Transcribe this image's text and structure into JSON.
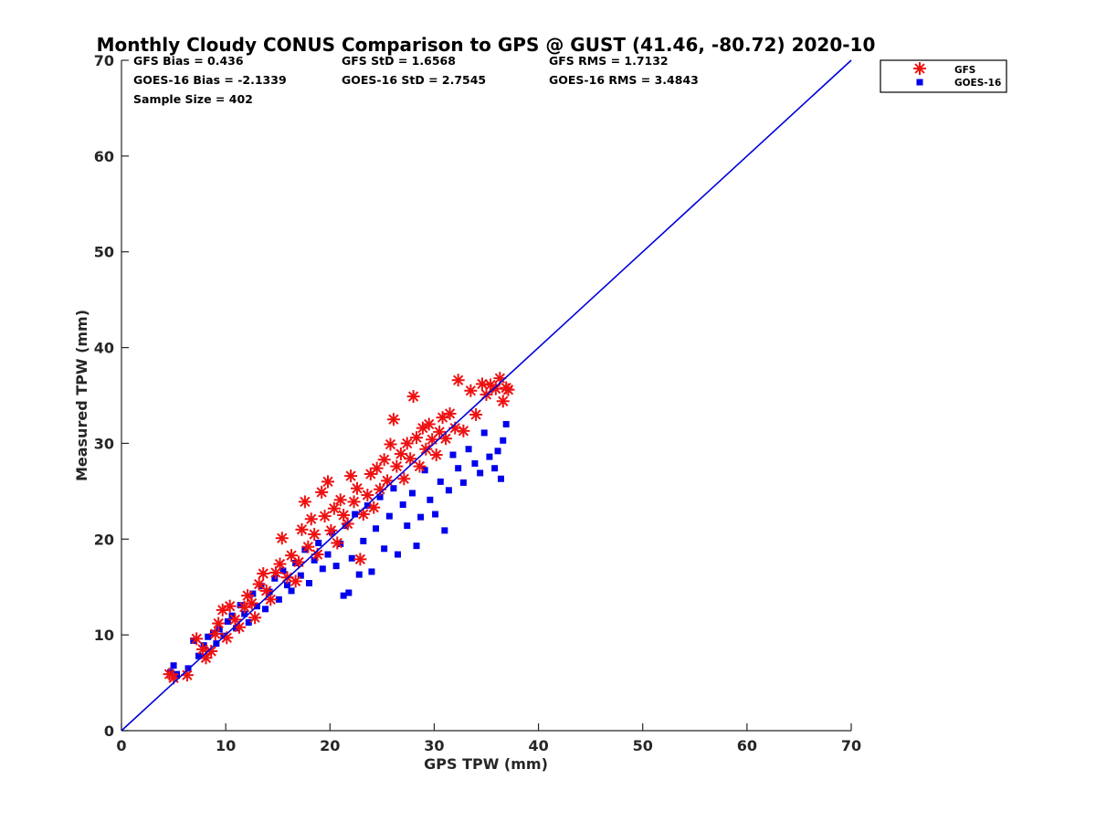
{
  "chart_data": {
    "type": "scatter",
    "title": "Monthly Cloudy CONUS Comparison to GPS @ GUST (41.46, -80.72) 2020-10",
    "xlabel": "GPS TPW (mm)",
    "ylabel": "Measured TPW (mm)",
    "xlim": [
      0,
      70
    ],
    "ylim": [
      0,
      70
    ],
    "xticks": [
      "0",
      "10",
      "20",
      "30",
      "40",
      "50",
      "60",
      "70"
    ],
    "yticks": [
      "0",
      "10",
      "20",
      "30",
      "40",
      "50",
      "60",
      "70"
    ],
    "grid": false,
    "legend_position": "top-right",
    "stats": {
      "gfs_bias": "GFS Bias = 0.436",
      "gfs_std": "GFS StD = 1.6568",
      "gfs_rms": "GFS RMS = 1.7132",
      "goes_bias": "GOES-16 Bias = -2.1339",
      "goes_std": "GOES-16 StD = 2.7545",
      "goes_rms": "GOES-16 RMS = 3.4843",
      "sample_size": "Sample Size = 402"
    },
    "reference_line": {
      "x": [
        0,
        70
      ],
      "y": [
        0,
        70
      ],
      "color": "#0000dd"
    },
    "series": [
      {
        "name": "GFS",
        "marker": "asterisk",
        "color": "#ee1111",
        "points": [
          [
            4.6,
            5.9
          ],
          [
            5.0,
            5.5
          ],
          [
            6.3,
            5.8
          ],
          [
            7.2,
            9.6
          ],
          [
            7.8,
            8.5
          ],
          [
            8.1,
            7.6
          ],
          [
            8.6,
            8.3
          ],
          [
            9.0,
            10.1
          ],
          [
            9.3,
            11.2
          ],
          [
            9.7,
            12.6
          ],
          [
            10.1,
            9.7
          ],
          [
            10.4,
            13.0
          ],
          [
            10.9,
            11.6
          ],
          [
            11.3,
            10.8
          ],
          [
            11.8,
            12.9
          ],
          [
            12.1,
            14.1
          ],
          [
            12.5,
            13.3
          ],
          [
            12.8,
            11.8
          ],
          [
            13.2,
            15.3
          ],
          [
            13.6,
            16.4
          ],
          [
            13.9,
            14.6
          ],
          [
            14.3,
            13.7
          ],
          [
            14.8,
            16.5
          ],
          [
            15.2,
            17.4
          ],
          [
            15.4,
            20.1
          ],
          [
            15.9,
            16.0
          ],
          [
            16.3,
            18.3
          ],
          [
            16.7,
            15.6
          ],
          [
            17.0,
            17.6
          ],
          [
            17.3,
            21.0
          ],
          [
            17.6,
            23.9
          ],
          [
            17.9,
            19.2
          ],
          [
            18.2,
            22.1
          ],
          [
            18.5,
            20.5
          ],
          [
            18.8,
            18.4
          ],
          [
            19.2,
            24.9
          ],
          [
            19.5,
            22.4
          ],
          [
            19.8,
            26.0
          ],
          [
            20.1,
            20.9
          ],
          [
            20.4,
            23.2
          ],
          [
            20.7,
            19.6
          ],
          [
            21.0,
            24.1
          ],
          [
            21.3,
            22.5
          ],
          [
            21.7,
            21.6
          ],
          [
            22.0,
            26.6
          ],
          [
            22.3,
            23.9
          ],
          [
            22.6,
            25.3
          ],
          [
            22.9,
            17.9
          ],
          [
            23.2,
            22.6
          ],
          [
            23.6,
            24.6
          ],
          [
            23.9,
            26.8
          ],
          [
            24.2,
            23.3
          ],
          [
            24.5,
            27.4
          ],
          [
            24.8,
            25.2
          ],
          [
            25.2,
            28.3
          ],
          [
            25.5,
            26.1
          ],
          [
            25.8,
            29.9
          ],
          [
            26.1,
            32.5
          ],
          [
            26.4,
            27.6
          ],
          [
            26.8,
            28.9
          ],
          [
            27.1,
            26.3
          ],
          [
            27.4,
            30.0
          ],
          [
            27.7,
            28.4
          ],
          [
            28.0,
            34.9
          ],
          [
            28.3,
            30.6
          ],
          [
            28.6,
            27.6
          ],
          [
            28.9,
            31.6
          ],
          [
            29.2,
            29.4
          ],
          [
            29.5,
            32.0
          ],
          [
            29.8,
            30.4
          ],
          [
            30.2,
            28.8
          ],
          [
            30.5,
            31.2
          ],
          [
            30.8,
            32.7
          ],
          [
            31.1,
            30.5
          ],
          [
            31.5,
            33.1
          ],
          [
            32.0,
            31.6
          ],
          [
            32.3,
            36.6
          ],
          [
            32.8,
            31.3
          ],
          [
            33.5,
            35.5
          ],
          [
            34.0,
            33.0
          ],
          [
            34.6,
            36.2
          ],
          [
            35.0,
            35.1
          ],
          [
            35.4,
            36.1
          ],
          [
            35.9,
            35.7
          ],
          [
            36.3,
            36.8
          ],
          [
            36.6,
            34.4
          ],
          [
            36.9,
            35.8
          ],
          [
            37.1,
            35.6
          ]
        ]
      },
      {
        "name": "GOES-16",
        "marker": "square",
        "color": "#0000ee",
        "points": [
          [
            4.7,
            6.1
          ],
          [
            5.0,
            6.8
          ],
          [
            5.3,
            5.9
          ],
          [
            6.4,
            6.5
          ],
          [
            6.9,
            9.4
          ],
          [
            7.4,
            7.8
          ],
          [
            7.9,
            8.9
          ],
          [
            8.3,
            9.8
          ],
          [
            8.8,
            10.2
          ],
          [
            9.1,
            9.1
          ],
          [
            9.4,
            10.6
          ],
          [
            9.8,
            9.9
          ],
          [
            10.2,
            11.4
          ],
          [
            10.6,
            12.0
          ],
          [
            11.0,
            10.7
          ],
          [
            11.4,
            13.1
          ],
          [
            11.8,
            12.2
          ],
          [
            12.2,
            11.3
          ],
          [
            12.6,
            14.3
          ],
          [
            13.0,
            13.0
          ],
          [
            13.4,
            15.1
          ],
          [
            13.8,
            12.7
          ],
          [
            14.2,
            14.5
          ],
          [
            14.7,
            15.9
          ],
          [
            15.1,
            13.7
          ],
          [
            15.5,
            16.7
          ],
          [
            15.9,
            15.2
          ],
          [
            16.3,
            14.6
          ],
          [
            16.7,
            17.5
          ],
          [
            17.2,
            16.2
          ],
          [
            17.6,
            18.9
          ],
          [
            18.0,
            15.4
          ],
          [
            18.5,
            17.8
          ],
          [
            18.9,
            19.6
          ],
          [
            19.3,
            16.9
          ],
          [
            19.8,
            18.4
          ],
          [
            20.2,
            20.7
          ],
          [
            20.6,
            17.2
          ],
          [
            21.0,
            19.5
          ],
          [
            21.3,
            14.1
          ],
          [
            21.5,
            21.4
          ],
          [
            21.8,
            14.4
          ],
          [
            22.1,
            18.0
          ],
          [
            22.4,
            22.6
          ],
          [
            22.8,
            16.3
          ],
          [
            23.2,
            19.8
          ],
          [
            23.6,
            23.5
          ],
          [
            24.0,
            16.6
          ],
          [
            24.4,
            21.1
          ],
          [
            24.8,
            24.4
          ],
          [
            25.2,
            19.0
          ],
          [
            25.7,
            22.4
          ],
          [
            26.1,
            25.3
          ],
          [
            26.5,
            18.4
          ],
          [
            27.0,
            23.6
          ],
          [
            27.4,
            21.4
          ],
          [
            27.9,
            24.8
          ],
          [
            28.3,
            19.3
          ],
          [
            28.7,
            22.3
          ],
          [
            29.1,
            27.2
          ],
          [
            29.6,
            24.1
          ],
          [
            30.1,
            22.6
          ],
          [
            30.6,
            26.0
          ],
          [
            31.0,
            20.9
          ],
          [
            31.4,
            25.1
          ],
          [
            31.8,
            28.8
          ],
          [
            32.3,
            27.4
          ],
          [
            32.8,
            25.9
          ],
          [
            33.3,
            29.4
          ],
          [
            33.9,
            27.9
          ],
          [
            34.4,
            26.9
          ],
          [
            34.8,
            31.1
          ],
          [
            35.3,
            28.6
          ],
          [
            35.8,
            27.4
          ],
          [
            36.1,
            29.2
          ],
          [
            36.4,
            26.3
          ],
          [
            36.6,
            30.3
          ],
          [
            36.9,
            32.0
          ]
        ]
      }
    ]
  }
}
